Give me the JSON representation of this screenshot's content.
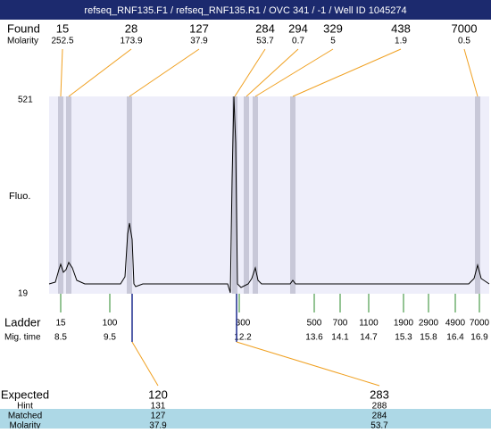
{
  "header": {
    "title": "refseq_RNF135.F1 / refseq_RNF135.R1 / OVC 341 / -1 / Well ID 1045274"
  },
  "found": {
    "label": "Found",
    "values": [
      "15",
      "28",
      "127",
      "284",
      "294",
      "329",
      "438",
      "7000"
    ]
  },
  "found_molarity": {
    "label": "Molarity",
    "values": [
      "252.5",
      "173.9",
      "37.9",
      "53.7",
      "0.7",
      "5",
      "1.9",
      "0.5"
    ]
  },
  "axis": {
    "top": "521",
    "bottom": "19",
    "label": "Fluo."
  },
  "ladder": {
    "label": "Ladder",
    "values": [
      "15",
      "100",
      "300",
      "500",
      "700",
      "1100",
      "1900",
      "2900",
      "4900",
      "7000"
    ]
  },
  "mig_time": {
    "label": "Mig. time",
    "values": [
      "8.5",
      "9.5",
      "12.2",
      "13.6",
      "14.1",
      "14.7",
      "15.3",
      "15.8",
      "16.4",
      "16.9"
    ]
  },
  "expected": {
    "label": "Expected",
    "values": [
      "120",
      "283"
    ]
  },
  "hint": {
    "label": "Hint",
    "values": [
      "131",
      "288"
    ]
  },
  "matched": {
    "label": "Matched",
    "values": [
      "127",
      "284"
    ]
  },
  "matched_molarity": {
    "label": "Molarity",
    "values": [
      "37.9",
      "53.7"
    ]
  }
}
